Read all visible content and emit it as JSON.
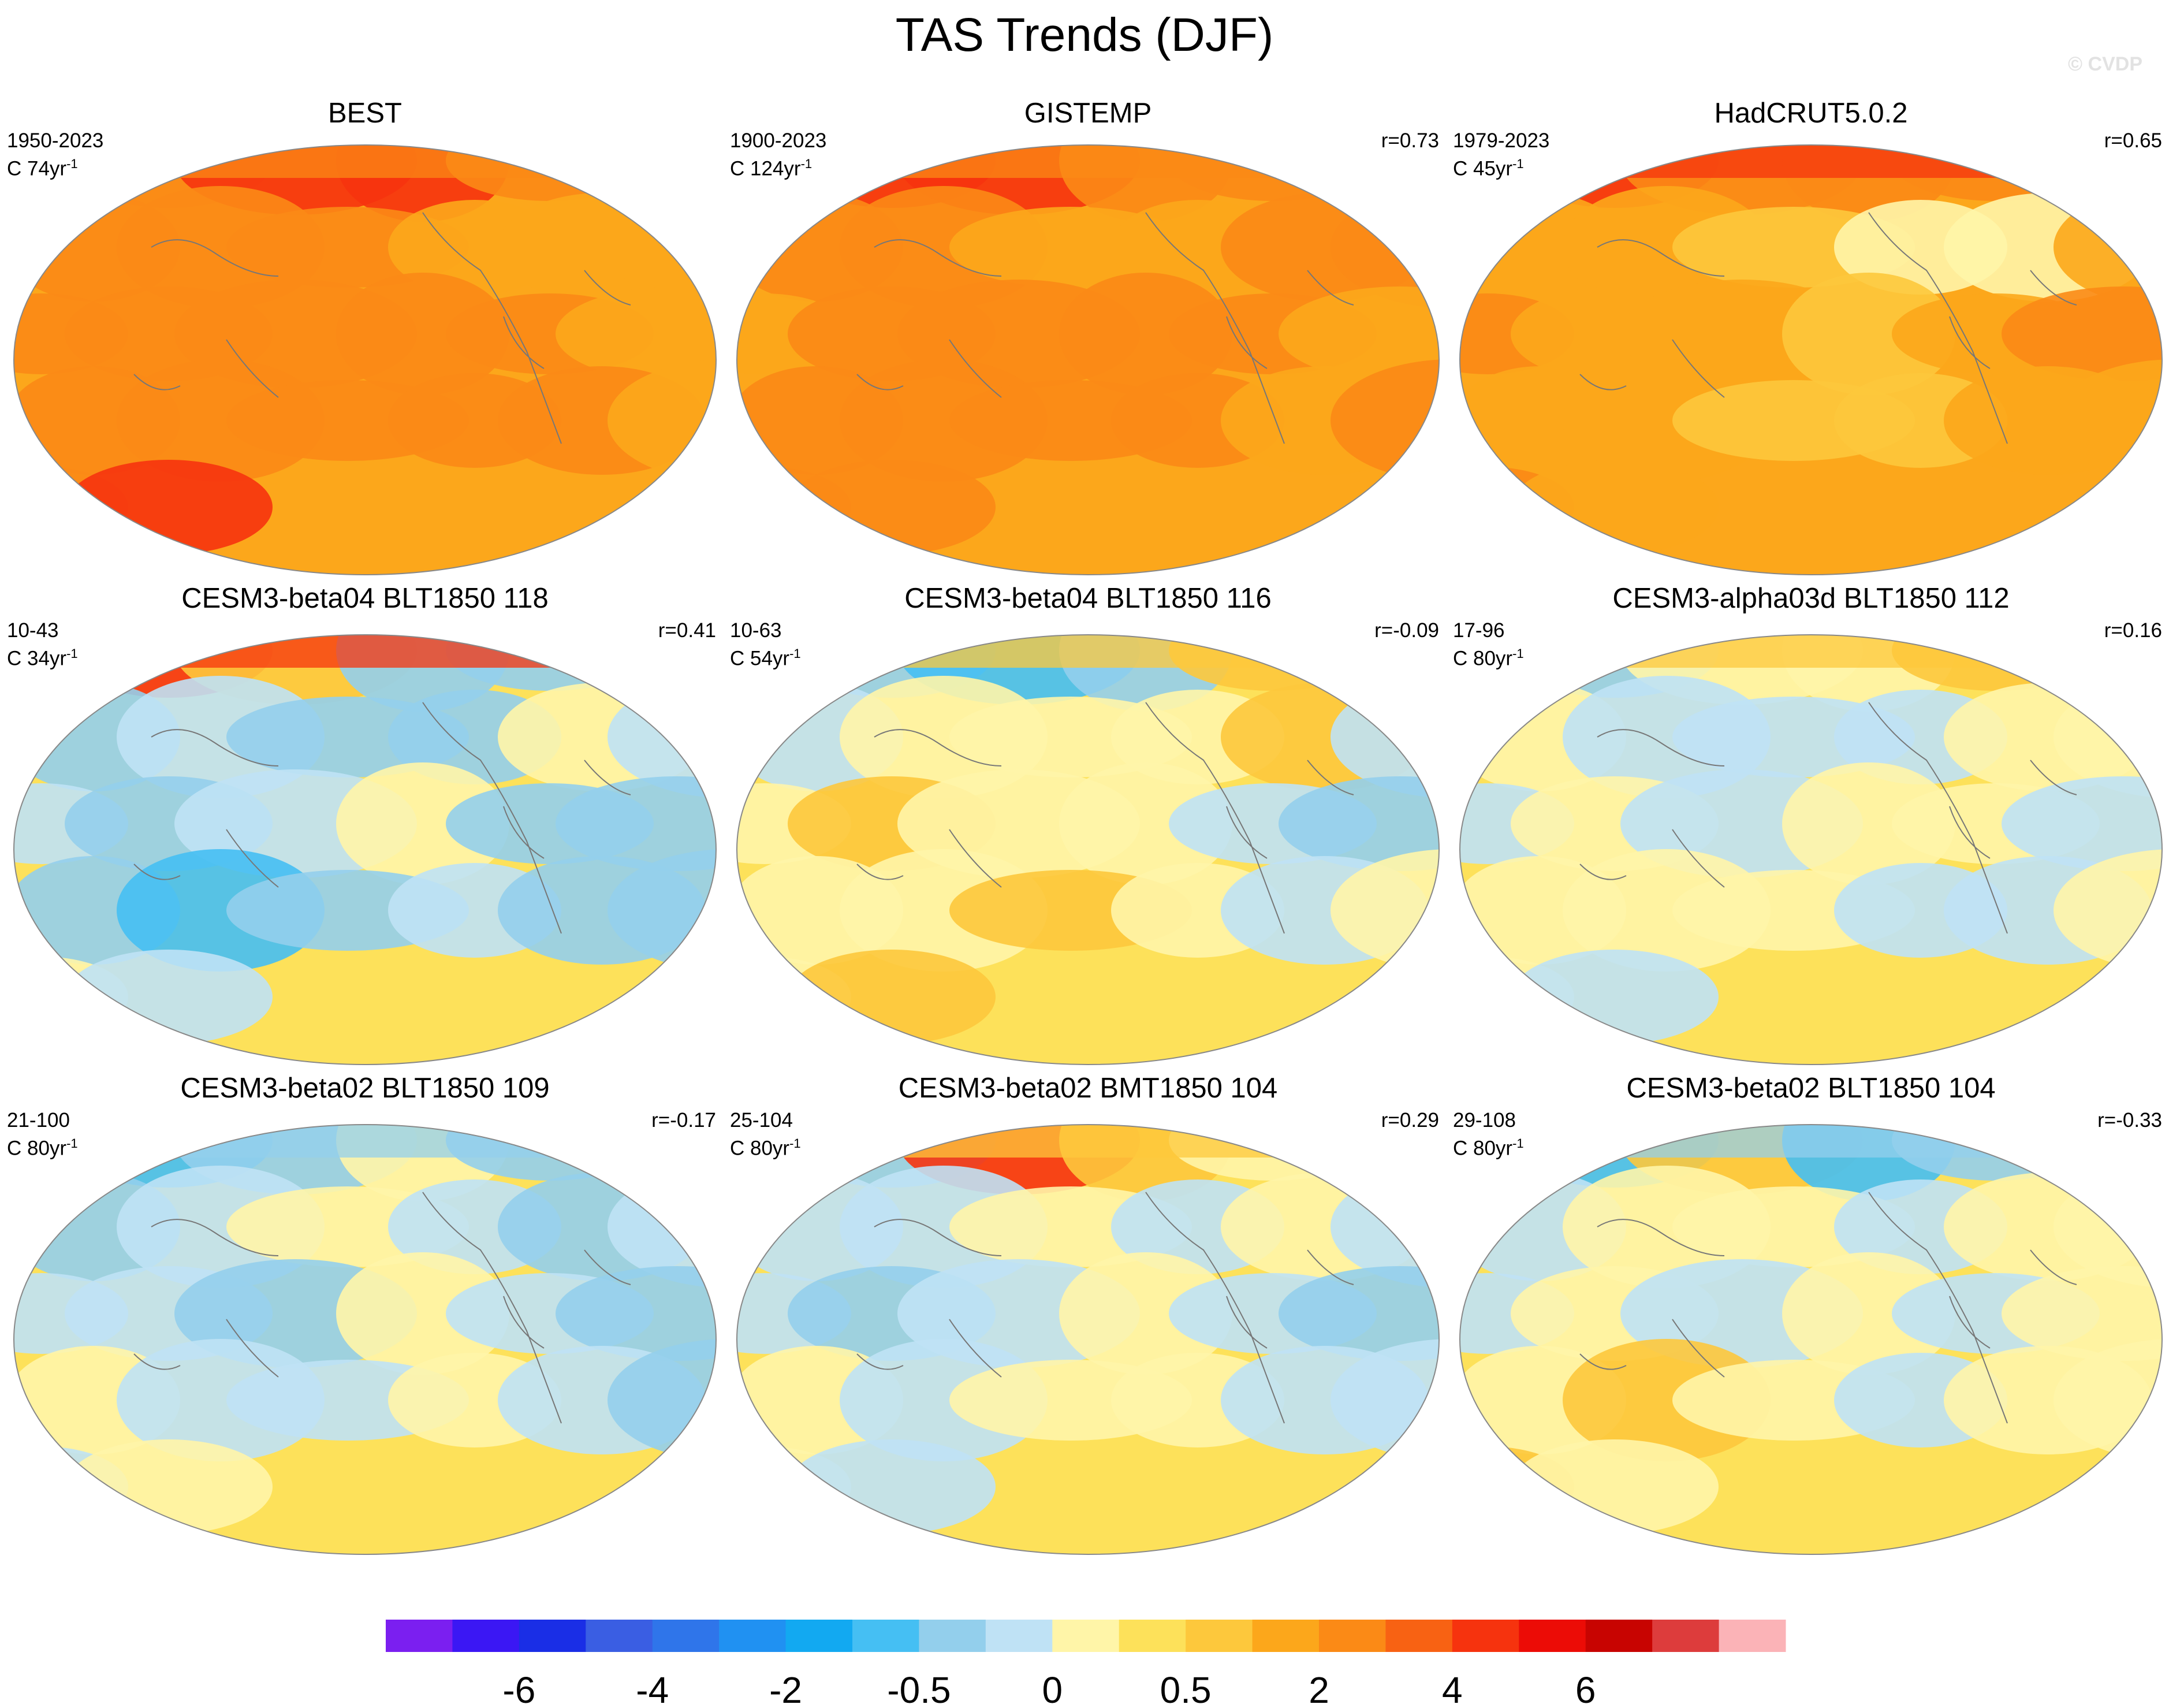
{
  "title": "TAS Trends (DJF)",
  "watermark": "© CVDP",
  "chart_data": {
    "type": "heatmap",
    "projection": "Robinson (Pacific-centered)",
    "variable": "TAS",
    "season": "DJF",
    "panels": [
      {
        "name": "BEST",
        "period": "1950-2023",
        "count": "C 74yr",
        "r": "",
        "theme": "warm",
        "values": [
          5,
          5,
          6,
          6,
          5,
          5,
          5,
          5,
          5,
          4,
          4,
          4,
          5,
          5,
          5,
          5,
          5,
          4,
          5,
          5,
          5,
          5,
          5,
          4,
          5,
          6
        ]
      },
      {
        "name": "GISTEMP",
        "period": "1900-2023",
        "count": "C 124yr",
        "r": "r=0.73",
        "theme": "warm",
        "values": [
          5,
          6,
          6,
          5,
          5,
          5,
          5,
          5,
          4,
          4,
          5,
          5,
          4,
          5,
          5,
          5,
          5,
          4,
          5,
          5,
          5,
          5,
          4,
          5,
          5,
          5
        ]
      },
      {
        "name": "HadCRUT5.0.2",
        "period": "1979-2023",
        "count": "C 45yr",
        "r": "r=0.65",
        "theme": "warm",
        "values": [
          6,
          6,
          5,
          5,
          5,
          5,
          4,
          4,
          3,
          2,
          2,
          4,
          5,
          4,
          4,
          3,
          4,
          5,
          4,
          4,
          3,
          3,
          4,
          4,
          5,
          4
        ]
      },
      {
        "name": "CESM3-beta04 BLT1850 118",
        "period": "10-43",
        "count": "C 34yr",
        "r": "r=0.41",
        "theme": "mixed",
        "values": [
          6,
          6,
          5,
          2,
          2,
          4,
          2,
          3,
          2,
          2,
          4,
          3,
          3,
          2,
          3,
          4,
          2,
          2,
          2,
          1,
          2,
          3,
          2,
          2,
          4,
          3
        ]
      },
      {
        "name": "CESM3-beta04 BLT1850 116",
        "period": "10-63",
        "count": "C 54yr",
        "r": "r=-0.09",
        "theme": "mixed",
        "values": [
          5,
          2,
          1,
          2,
          5,
          2,
          3,
          4,
          4,
          4,
          5,
          3,
          4,
          5,
          4,
          4,
          3,
          2,
          4,
          4,
          5,
          4,
          3,
          4,
          4,
          5
        ]
      },
      {
        "name": "CESM3-alpha03d BLT1850 112",
        "period": "17-96",
        "count": "C 80yr",
        "r": "r=0.16",
        "theme": "mixed",
        "values": [
          5,
          2,
          4,
          4,
          5,
          2,
          4,
          3,
          3,
          3,
          4,
          4,
          3,
          4,
          3,
          4,
          4,
          3,
          4,
          4,
          4,
          3,
          3,
          4,
          4,
          3
        ]
      },
      {
        "name": "CESM3-beta02 BLT1850 109",
        "period": "21-100",
        "count": "C 80yr",
        "r": "r=-0.17",
        "theme": "mixed",
        "values": [
          2,
          1,
          2,
          4,
          2,
          3,
          2,
          3,
          4,
          3,
          2,
          3,
          3,
          3,
          2,
          4,
          3,
          2,
          4,
          3,
          3,
          4,
          3,
          2,
          3,
          4
        ]
      },
      {
        "name": "CESM3-beta02 BMT1850 104",
        "period": "25-104",
        "count": "C 80yr",
        "r": "r=0.29",
        "theme": "mixed",
        "values": [
          5,
          2,
          6,
          5,
          4,
          2,
          3,
          3,
          4,
          3,
          4,
          3,
          3,
          2,
          3,
          4,
          3,
          2,
          4,
          3,
          4,
          4,
          3,
          3,
          4,
          3
        ]
      },
      {
        "name": "CESM3-beta02 BLT1850 104",
        "period": "29-108",
        "count": "C 80yr",
        "r": "r=-0.33",
        "theme": "mixed",
        "values": [
          2,
          1,
          5,
          1,
          2,
          2,
          3,
          4,
          4,
          3,
          4,
          4,
          3,
          4,
          3,
          4,
          3,
          4,
          4,
          5,
          4,
          3,
          4,
          4,
          5,
          4
        ]
      }
    ],
    "colorbar": {
      "colors": [
        "#7b1ff0",
        "#3b17f4",
        "#1a2ee6",
        "#3a5ee3",
        "#2f75ea",
        "#2091f2",
        "#12a9f1",
        "#45bff3",
        "#93cfec",
        "#bfe2f5",
        "#fff5a8",
        "#fde15a",
        "#fdc83c",
        "#fca71b",
        "#fb8a16",
        "#f86213",
        "#f6330e",
        "#ec0c06",
        "#c80401",
        "#dd3c3c",
        "#fbb3b7"
      ],
      "tick_labels": [
        "-6",
        "-4",
        "-2",
        "-0.5",
        "0",
        "0.5",
        "2",
        "4",
        "6"
      ]
    }
  }
}
